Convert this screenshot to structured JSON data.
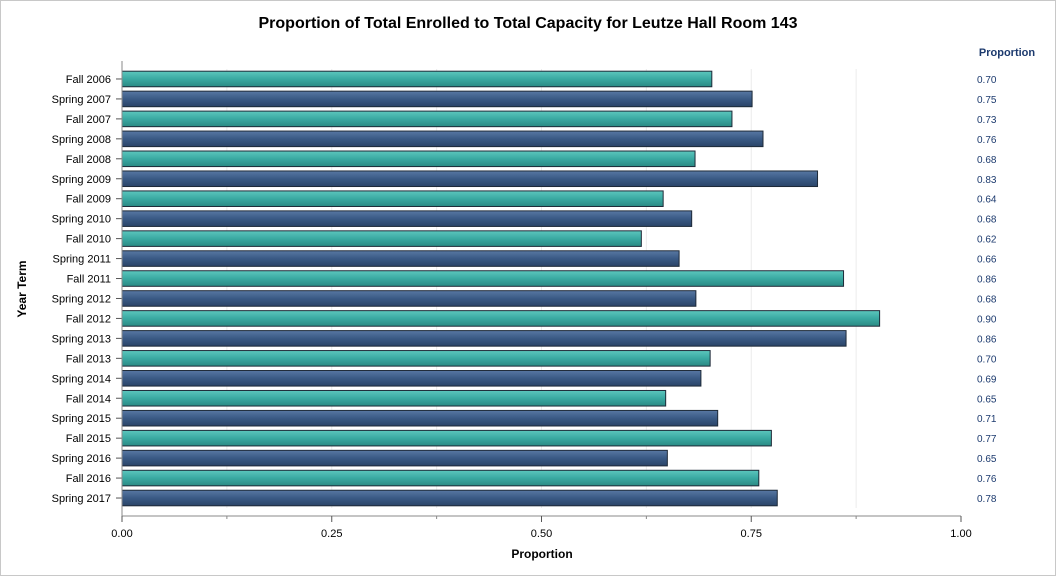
{
  "chart_data": {
    "type": "bar",
    "orientation": "horizontal",
    "title": "Proportion of Total Enrolled to Total Capacity for Leutze Hall Room 143",
    "xlabel": "Proportion",
    "ylabel": "Year Term",
    "value_column_header": "Proportion",
    "xlim": [
      0,
      1
    ],
    "x_ticks": [
      "0.00",
      "0.25",
      "0.50",
      "0.75",
      "1.00"
    ],
    "grid": "vertical minor lines",
    "categories": [
      "Fall 2006",
      "Spring 2007",
      "Fall 2007",
      "Spring 2008",
      "Fall 2008",
      "Spring 2009",
      "Fall 2009",
      "Spring 2010",
      "Fall 2010",
      "Spring 2011",
      "Fall 2011",
      "Spring 2012",
      "Fall 2012",
      "Spring 2013",
      "Fall 2013",
      "Spring 2014",
      "Fall 2014",
      "Spring 2015",
      "Fall 2015",
      "Spring 2016",
      "Fall 2016",
      "Spring 2017"
    ],
    "values": [
      0.703,
      0.751,
      0.727,
      0.764,
      0.683,
      0.829,
      0.645,
      0.679,
      0.619,
      0.664,
      0.86,
      0.684,
      0.903,
      0.863,
      0.701,
      0.69,
      0.648,
      0.71,
      0.774,
      0.65,
      0.759,
      0.781
    ],
    "value_labels": [
      "0.70",
      "0.75",
      "0.73",
      "0.76",
      "0.68",
      "0.83",
      "0.64",
      "0.68",
      "0.62",
      "0.66",
      "0.86",
      "0.68",
      "0.90",
      "0.86",
      "0.70",
      "0.69",
      "0.65",
      "0.71",
      "0.77",
      "0.65",
      "0.76",
      "0.78"
    ],
    "colors": {
      "fall": "#3aa9a2",
      "spring": "#3a5a85",
      "value_text": "#1c3a6e"
    }
  }
}
